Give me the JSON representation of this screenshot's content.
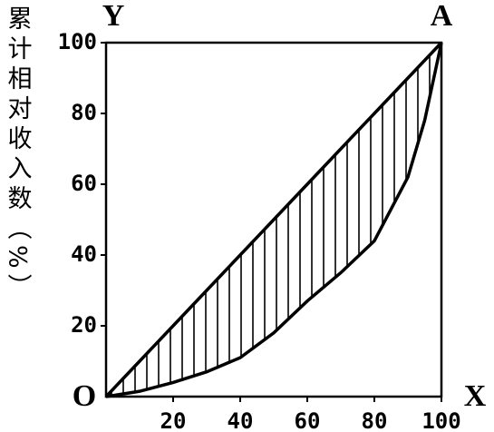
{
  "chart_data": {
    "type": "line",
    "y_label": "累计相对收入数（%）",
    "corner_labels": {
      "origin": "O",
      "x_end": "X",
      "y_end": "Y",
      "top_right": "A"
    },
    "x": [
      0,
      10,
      20,
      30,
      40,
      50,
      60,
      70,
      80,
      90,
      95,
      100
    ],
    "series": [
      {
        "color": "#000000",
        "values": [
          0,
          10,
          20,
          30,
          40,
          50,
          60,
          70,
          80,
          90,
          95,
          100
        ]
      },
      {
        "color": "#000000",
        "values": [
          0,
          1.5,
          4,
          7,
          11,
          18,
          27,
          35,
          44,
          62,
          78,
          100
        ]
      }
    ],
    "hatch": true,
    "xlim": [
      0,
      100
    ],
    "ylim": [
      0,
      100
    ],
    "xticks": [
      20,
      40,
      60,
      80,
      100
    ],
    "yticks": [
      20,
      40,
      60,
      80,
      100
    ]
  }
}
